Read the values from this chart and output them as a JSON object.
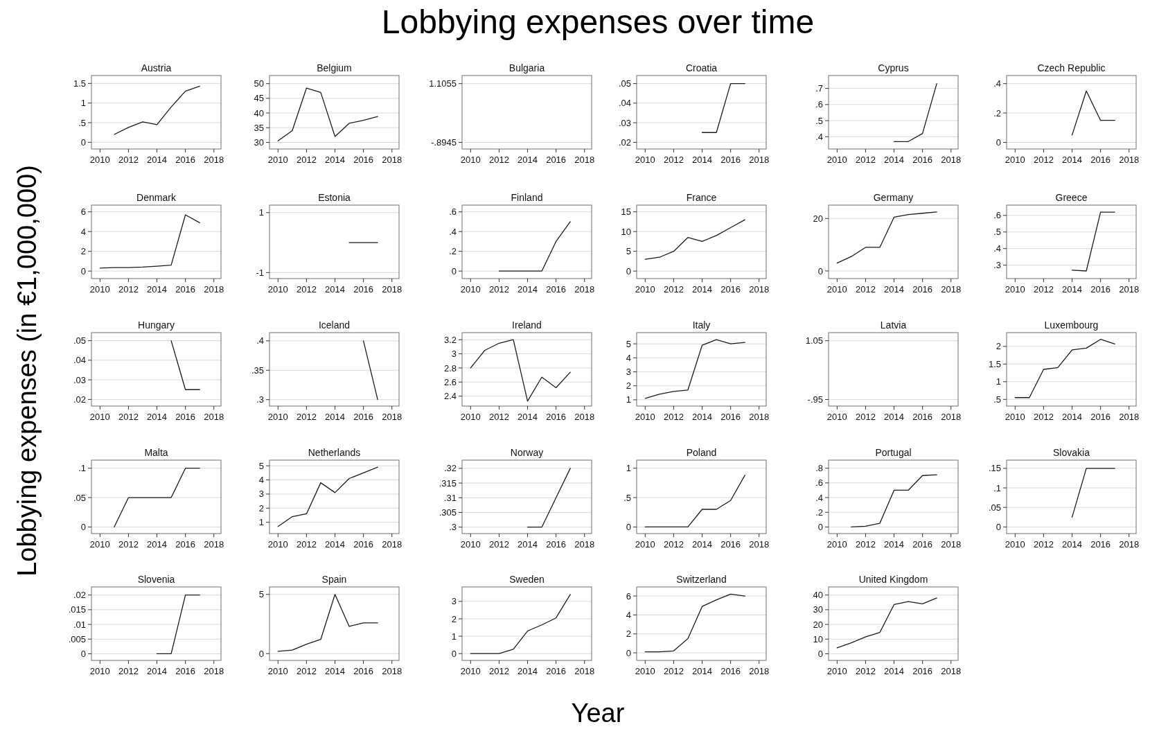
{
  "chart_data": [
    {
      "type": "line",
      "title": "Austria",
      "x": [
        2011,
        2012,
        2013,
        2014,
        2015,
        2016,
        2017
      ],
      "values": [
        0.2,
        0.38,
        0.52,
        0.45,
        0.9,
        1.3,
        1.43
      ],
      "color": "#1a1a1a",
      "xlim": [
        2009.4,
        2018.5
      ],
      "xticks": [
        2010,
        2012,
        2014,
        2016,
        2018
      ],
      "ylim": [
        -0.17,
        1.7
      ],
      "yticks": [
        0,
        {
          "value": 0.5,
          "label": ".5"
        },
        1,
        1.5
      ],
      "grid": "y"
    },
    {
      "type": "line",
      "title": "Belgium",
      "x": [
        2010,
        2011,
        2012,
        2013,
        2014,
        2015,
        2016,
        2017
      ],
      "values": [
        30.5,
        34,
        48.5,
        47,
        32,
        36.5,
        37.5,
        38.8
      ],
      "color": "#1a1a1a",
      "xlim": [
        2009.4,
        2018.5
      ],
      "xticks": [
        2010,
        2012,
        2014,
        2016,
        2018
      ],
      "ylim": [
        27.75,
        52.75
      ],
      "yticks": [
        30,
        35,
        40,
        45,
        50
      ],
      "grid": "y"
    },
    {
      "type": "line",
      "title": "Bulgaria",
      "xlim": [
        2009.4,
        2018.5
      ],
      "xticks": [
        2010,
        2012,
        2014,
        2016,
        2018
      ],
      "ylim": [
        -1.1195,
        1.3805
      ],
      "yticks": [
        {
          "value": -0.8945,
          "label": "-.8945"
        },
        1.1055
      ],
      "grid": "y"
    },
    {
      "type": "line",
      "title": "Croatia",
      "x": [
        2014,
        2015,
        2016,
        2017
      ],
      "values": [
        0.025,
        0.025,
        0.05,
        0.05
      ],
      "color": "#1a1a1a",
      "xlim": [
        2009.4,
        2018.5
      ],
      "xticks": [
        2010,
        2012,
        2014,
        2016,
        2018
      ],
      "ylim": [
        0.0166,
        0.0541
      ],
      "yticks": [
        {
          "value": 0.02,
          "label": ".02"
        },
        {
          "value": 0.03,
          "label": ".03"
        },
        {
          "value": 0.04,
          "label": ".04"
        },
        {
          "value": 0.05,
          "label": ".05"
        }
      ],
      "grid": "y"
    },
    {
      "type": "line",
      "title": "Cyprus",
      "x": [
        2014,
        2015,
        2016,
        2017
      ],
      "values": [
        0.37,
        0.37,
        0.42,
        0.73
      ],
      "color": "#1a1a1a",
      "xlim": [
        2009.4,
        2018.5
      ],
      "xticks": [
        2010,
        2012,
        2014,
        2016,
        2018
      ],
      "ylim": [
        0.324,
        0.78
      ],
      "yticks": [
        {
          "value": 0.4,
          "label": ".4"
        },
        {
          "value": 0.5,
          "label": ".5"
        },
        {
          "value": 0.6,
          "label": ".6"
        },
        {
          "value": 0.7,
          "label": ".7"
        }
      ],
      "grid": "y"
    },
    {
      "type": "line",
      "title": "Czech Republic",
      "x": [
        2014,
        2015,
        2016,
        2017
      ],
      "values": [
        0.05,
        0.35,
        0.15,
        0.15
      ],
      "color": "#1a1a1a",
      "xlim": [
        2009.4,
        2018.5
      ],
      "xticks": [
        2010,
        2012,
        2014,
        2016,
        2018
      ],
      "ylim": [
        -0.045,
        0.455
      ],
      "yticks": [
        0,
        {
          "value": 0.2,
          "label": ".2"
        },
        {
          "value": 0.4,
          "label": ".4"
        }
      ],
      "grid": "y"
    },
    {
      "type": "line",
      "title": "Denmark",
      "x": [
        2010,
        2011,
        2012,
        2013,
        2014,
        2015,
        2016,
        2017
      ],
      "values": [
        0.3,
        0.35,
        0.35,
        0.4,
        0.5,
        0.6,
        5.7,
        4.9
      ],
      "color": "#1a1a1a",
      "xlim": [
        2009.4,
        2018.5
      ],
      "xticks": [
        2010,
        2012,
        2014,
        2016,
        2018
      ],
      "ylim": [
        -0.76,
        6.68
      ],
      "yticks": [
        0,
        2,
        4,
        6
      ],
      "grid": "y"
    },
    {
      "type": "line",
      "title": "Estonia",
      "x": [
        2015,
        2016,
        2017
      ],
      "values": [
        0,
        0,
        0
      ],
      "color": "#1a1a1a",
      "xlim": [
        2009.4,
        2018.5
      ],
      "xticks": [
        2010,
        2012,
        2014,
        2016,
        2018
      ],
      "ylim": [
        -1.2,
        1.25
      ],
      "yticks": [
        -1,
        1
      ],
      "grid": "y"
    },
    {
      "type": "line",
      "title": "Finland",
      "x": [
        2012,
        2013,
        2014,
        2015,
        2016,
        2017
      ],
      "values": [
        0,
        0,
        0,
        0,
        0.3,
        0.5
      ],
      "color": "#1a1a1a",
      "xlim": [
        2009.4,
        2018.5
      ],
      "xticks": [
        2010,
        2012,
        2014,
        2016,
        2018
      ],
      "ylim": [
        -0.076,
        0.668
      ],
      "yticks": [
        0,
        {
          "value": 0.2,
          "label": ".2"
        },
        {
          "value": 0.4,
          "label": ".4"
        },
        {
          "value": 0.6,
          "label": ".6"
        }
      ],
      "grid": "y"
    },
    {
      "type": "line",
      "title": "France",
      "x": [
        2010,
        2011,
        2012,
        2013,
        2014,
        2015,
        2016,
        2017
      ],
      "values": [
        3,
        3.5,
        5,
        8.5,
        7.5,
        9,
        11,
        13
      ],
      "color": "#1a1a1a",
      "xlim": [
        2009.4,
        2018.5
      ],
      "xticks": [
        2010,
        2012,
        2014,
        2016,
        2018
      ],
      "ylim": [
        -1.9,
        16.7
      ],
      "yticks": [
        0,
        5,
        10,
        15
      ],
      "grid": "y"
    },
    {
      "type": "line",
      "title": "Germany",
      "x": [
        2010,
        2011,
        2012,
        2013,
        2014,
        2015,
        2016,
        2017
      ],
      "values": [
        3,
        5.5,
        9,
        9,
        20.5,
        21.5,
        22,
        22.5
      ],
      "color": "#1a1a1a",
      "xlim": [
        2009.4,
        2018.5
      ],
      "xticks": [
        2010,
        2012,
        2014,
        2016,
        2018
      ],
      "ylim": [
        -2.9,
        25.1
      ],
      "yticks": [
        0,
        20
      ],
      "grid": "y"
    },
    {
      "type": "line",
      "title": "Greece",
      "x": [
        2014,
        2015,
        2016,
        2017
      ],
      "values": [
        0.27,
        0.265,
        0.62,
        0.62
      ],
      "color": "#1a1a1a",
      "xlim": [
        2009.4,
        2018.5
      ],
      "xticks": [
        2010,
        2012,
        2014,
        2016,
        2018
      ],
      "ylim": [
        0.219,
        0.662
      ],
      "yticks": [
        {
          "value": 0.3,
          "label": ".3"
        },
        {
          "value": 0.4,
          "label": ".4"
        },
        {
          "value": 0.5,
          "label": ".5"
        },
        {
          "value": 0.6,
          "label": ".6"
        }
      ],
      "grid": "y"
    },
    {
      "type": "line",
      "title": "Hungary",
      "x": [
        2015,
        2016,
        2017
      ],
      "values": [
        0.05,
        0.025,
        0.025
      ],
      "color": "#1a1a1a",
      "xlim": [
        2009.4,
        2018.5
      ],
      "xticks": [
        2010,
        2012,
        2014,
        2016,
        2018
      ],
      "ylim": [
        0.0166,
        0.0541
      ],
      "yticks": [
        {
          "value": 0.02,
          "label": ".02"
        },
        {
          "value": 0.03,
          "label": ".03"
        },
        {
          "value": 0.04,
          "label": ".04"
        },
        {
          "value": 0.05,
          "label": ".05"
        }
      ],
      "grid": "y"
    },
    {
      "type": "line",
      "title": "Iceland",
      "x": [
        2016,
        2017
      ],
      "values": [
        0.4,
        0.3
      ],
      "color": "#1a1a1a",
      "xlim": [
        2009.4,
        2018.5
      ],
      "xticks": [
        2010,
        2012,
        2014,
        2016,
        2018
      ],
      "ylim": [
        0.289,
        0.414
      ],
      "yticks": [
        {
          "value": 0.3,
          "label": ".3"
        },
        {
          "value": 0.35,
          "label": ".35"
        },
        {
          "value": 0.4,
          "label": ".4"
        }
      ],
      "grid": "y"
    },
    {
      "type": "line",
      "title": "Ireland",
      "x": [
        2010,
        2011,
        2012,
        2013,
        2014,
        2015,
        2016,
        2017
      ],
      "values": [
        2.8,
        3.05,
        3.15,
        3.2,
        2.33,
        2.67,
        2.52,
        2.74
      ],
      "color": "#1a1a1a",
      "xlim": [
        2009.4,
        2018.5
      ],
      "xticks": [
        2010,
        2012,
        2014,
        2016,
        2018
      ],
      "ylim": [
        2.26,
        3.3
      ],
      "yticks": [
        2.4,
        2.6,
        2.8,
        3,
        3.2
      ],
      "grid": "y"
    },
    {
      "type": "line",
      "title": "Italy",
      "x": [
        2010,
        2011,
        2012,
        2013,
        2014,
        2015,
        2016,
        2017
      ],
      "values": [
        1.1,
        1.4,
        1.6,
        1.7,
        4.9,
        5.3,
        5,
        5.1
      ],
      "color": "#1a1a1a",
      "xlim": [
        2009.4,
        2018.5
      ],
      "xticks": [
        2010,
        2012,
        2014,
        2016,
        2018
      ],
      "ylim": [
        0.55,
        5.8
      ],
      "yticks": [
        1,
        2,
        3,
        4,
        5
      ],
      "grid": "y"
    },
    {
      "type": "line",
      "title": "Latvia",
      "xlim": [
        2009.4,
        2018.5
      ],
      "xticks": [
        2010,
        2012,
        2014,
        2016,
        2018
      ],
      "ylim": [
        -1.175,
        1.325
      ],
      "yticks": [
        {
          "value": -0.95,
          "label": "-.95"
        },
        1.05
      ],
      "grid": "y"
    },
    {
      "type": "line",
      "title": "Luxembourg",
      "x": [
        2010,
        2011,
        2012,
        2013,
        2014,
        2015,
        2016,
        2017
      ],
      "values": [
        0.55,
        0.55,
        1.35,
        1.4,
        1.9,
        1.95,
        2.2,
        2.07
      ],
      "color": "#1a1a1a",
      "xlim": [
        2009.4,
        2018.5
      ],
      "xticks": [
        2010,
        2012,
        2014,
        2016,
        2018
      ],
      "ylim": [
        0.31,
        2.39
      ],
      "yticks": [
        {
          "value": 0.5,
          "label": ".5"
        },
        1,
        1.5,
        2
      ],
      "grid": "y"
    },
    {
      "type": "line",
      "title": "Malta",
      "x": [
        2011,
        2012,
        2013,
        2014,
        2015,
        2016,
        2017
      ],
      "values": [
        0,
        0.05,
        0.05,
        0.05,
        0.05,
        0.1,
        0.1
      ],
      "color": "#1a1a1a",
      "xlim": [
        2009.4,
        2018.5
      ],
      "xticks": [
        2010,
        2012,
        2014,
        2016,
        2018
      ],
      "ylim": [
        -0.01125,
        0.11375
      ],
      "yticks": [
        0,
        {
          "value": 0.05,
          "label": ".05"
        },
        {
          "value": 0.1,
          "label": ".1"
        }
      ],
      "grid": "y"
    },
    {
      "type": "line",
      "title": "Netherlands",
      "x": [
        2010,
        2011,
        2012,
        2013,
        2014,
        2015,
        2016,
        2017
      ],
      "values": [
        0.7,
        1.4,
        1.6,
        3.8,
        3.1,
        4.1,
        4.5,
        4.9
      ],
      "color": "#1a1a1a",
      "xlim": [
        2009.4,
        2018.5
      ],
      "xticks": [
        2010,
        2012,
        2014,
        2016,
        2018
      ],
      "ylim": [
        0.2,
        5.4
      ],
      "yticks": [
        1,
        2,
        3,
        4,
        5
      ],
      "grid": "y"
    },
    {
      "type": "line",
      "title": "Norway",
      "x": [
        2014,
        2015,
        2016,
        2017
      ],
      "values": [
        0.3,
        0.3,
        0.31,
        0.32
      ],
      "color": "#1a1a1a",
      "xlim": [
        2009.4,
        2018.5
      ],
      "xticks": [
        2010,
        2012,
        2014,
        2016,
        2018
      ],
      "ylim": [
        0.2978,
        0.3228
      ],
      "yticks": [
        {
          "value": 0.3,
          "label": ".3"
        },
        {
          "value": 0.305,
          "label": ".305"
        },
        {
          "value": 0.31,
          "label": ".31"
        },
        {
          "value": 0.315,
          "label": ".315"
        },
        {
          "value": 0.32,
          "label": ".32"
        }
      ],
      "grid": "y"
    },
    {
      "type": "line",
      "title": "Poland",
      "x": [
        2010,
        2011,
        2012,
        2013,
        2014,
        2015,
        2016,
        2017
      ],
      "values": [
        0,
        0,
        0,
        0,
        0.3,
        0.3,
        0.45,
        0.88
      ],
      "color": "#1a1a1a",
      "xlim": [
        2009.4,
        2018.5
      ],
      "xticks": [
        2010,
        2012,
        2014,
        2016,
        2018
      ],
      "ylim": [
        -0.1125,
        1.1375
      ],
      "yticks": [
        0,
        {
          "value": 0.5,
          "label": ".5"
        },
        1
      ],
      "grid": "y"
    },
    {
      "type": "line",
      "title": "Portugal",
      "x": [
        2011,
        2012,
        2013,
        2014,
        2015,
        2016,
        2017
      ],
      "values": [
        0,
        0.01,
        0.05,
        0.5,
        0.5,
        0.7,
        0.71
      ],
      "color": "#1a1a1a",
      "xlim": [
        2009.4,
        2018.5
      ],
      "xticks": [
        2010,
        2012,
        2014,
        2016,
        2018
      ],
      "ylim": [
        -0.09,
        0.91
      ],
      "yticks": [
        0,
        {
          "value": 0.2,
          "label": ".2"
        },
        {
          "value": 0.4,
          "label": ".4"
        },
        {
          "value": 0.6,
          "label": ".6"
        },
        {
          "value": 0.8,
          "label": ".8"
        }
      ],
      "grid": "y"
    },
    {
      "type": "line",
      "title": "Slovakia",
      "x": [
        2014,
        2015,
        2016,
        2017
      ],
      "values": [
        0.025,
        0.15,
        0.15,
        0.15
      ],
      "color": "#1a1a1a",
      "xlim": [
        2009.4,
        2018.5
      ],
      "xticks": [
        2010,
        2012,
        2014,
        2016,
        2018
      ],
      "ylim": [
        -0.017,
        0.171
      ],
      "yticks": [
        0,
        {
          "value": 0.05,
          "label": ".05"
        },
        {
          "value": 0.1,
          "label": ".1"
        },
        {
          "value": 0.15,
          "label": ".15"
        }
      ],
      "grid": "y"
    },
    {
      "type": "line",
      "title": "Slovenia",
      "x": [
        2014,
        2015,
        2016,
        2017
      ],
      "values": [
        0,
        0,
        0.02,
        0.02
      ],
      "color": "#1a1a1a",
      "xlim": [
        2009.4,
        2018.5
      ],
      "xticks": [
        2010,
        2012,
        2014,
        2016,
        2018
      ],
      "ylim": [
        -0.00225,
        0.02275
      ],
      "yticks": [
        0,
        {
          "value": 0.005,
          "label": ".005"
        },
        {
          "value": 0.01,
          "label": ".01"
        },
        {
          "value": 0.015,
          "label": ".015"
        },
        {
          "value": 0.02,
          "label": ".02"
        }
      ],
      "grid": "y"
    },
    {
      "type": "line",
      "title": "Spain",
      "x": [
        2010,
        2011,
        2012,
        2013,
        2014,
        2015,
        2016,
        2017
      ],
      "values": [
        0.2,
        0.3,
        0.8,
        1.2,
        5,
        2.3,
        2.6,
        2.6
      ],
      "color": "#1a1a1a",
      "xlim": [
        2009.4,
        2018.5
      ],
      "xticks": [
        2010,
        2012,
        2014,
        2016,
        2018
      ],
      "ylim": [
        -0.57,
        5.63
      ],
      "yticks": [
        0,
        5
      ],
      "grid": "y"
    },
    {
      "type": "line",
      "title": "Sweden",
      "x": [
        2010,
        2011,
        2012,
        2013,
        2014,
        2015,
        2016,
        2017
      ],
      "values": [
        0,
        0,
        0,
        0.25,
        1.3,
        1.65,
        2.05,
        3.4
      ],
      "color": "#1a1a1a",
      "xlim": [
        2009.4,
        2018.5
      ],
      "xticks": [
        2010,
        2012,
        2014,
        2016,
        2018
      ],
      "ylim": [
        -0.39,
        3.83
      ],
      "yticks": [
        0,
        1,
        2,
        3
      ],
      "grid": "y"
    },
    {
      "type": "line",
      "title": "Switzerland",
      "x": [
        2010,
        2011,
        2012,
        2013,
        2014,
        2015,
        2016,
        2017
      ],
      "values": [
        0.1,
        0.1,
        0.2,
        1.5,
        4.9,
        5.6,
        6.2,
        6
      ],
      "color": "#1a1a1a",
      "xlim": [
        2009.4,
        2018.5
      ],
      "xticks": [
        2010,
        2012,
        2014,
        2016,
        2018
      ],
      "ylim": [
        -0.8,
        6.96
      ],
      "yticks": [
        0,
        2,
        4,
        6
      ],
      "grid": "y"
    },
    {
      "type": "line",
      "title": "United Kingdom",
      "x": [
        2010,
        2011,
        2012,
        2013,
        2014,
        2015,
        2016,
        2017
      ],
      "values": [
        4,
        7.5,
        11.5,
        14.5,
        33.5,
        35.5,
        34,
        38
      ],
      "color": "#1a1a1a",
      "xlim": [
        2009.4,
        2018.5
      ],
      "xticks": [
        2010,
        2012,
        2014,
        2016,
        2018
      ],
      "ylim": [
        -4.5,
        45.5
      ],
      "yticks": [
        0,
        10,
        20,
        30,
        40
      ],
      "grid": "y"
    },
    {
      "type": "other",
      "title": "Lobbying expenses over time",
      "xlabel": "Year",
      "ylabel": "Lobbying expenses (in €1,000,000)"
    }
  ]
}
